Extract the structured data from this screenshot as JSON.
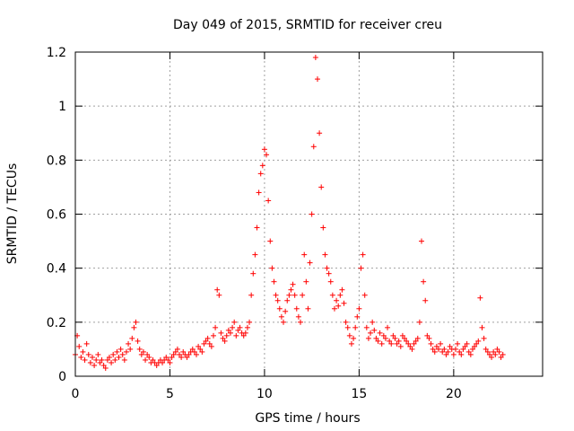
{
  "colors": {
    "series": "#ff0000",
    "grid": "#a0a0a0",
    "axis": "#000000"
  },
  "chart_data": {
    "type": "scatter",
    "title": "Day 049 of 2015, SRMTID for receiver creu",
    "xlabel": "GPS time / hours",
    "ylabel": "SRMTID / TECUs",
    "xlim": [
      0,
      24.7
    ],
    "ylim": [
      0,
      1.2
    ],
    "xticks": [
      0,
      5,
      10,
      15,
      20
    ],
    "xtick_labels": [
      "0",
      "5",
      "10",
      "15",
      "20"
    ],
    "yticks": [
      0,
      0.2,
      0.4,
      0.6,
      0.8,
      1.0,
      1.2
    ],
    "ytick_labels": [
      "0",
      "0.2",
      "0.4",
      "0.6",
      "0.8",
      "1",
      "1.2"
    ],
    "grid": true,
    "marker": "+",
    "series": [
      {
        "name": "SRMTID",
        "x_start": 0.0,
        "x_step": 0.1,
        "values": [
          0.08,
          0.15,
          0.11,
          0.07,
          0.09,
          0.06,
          0.12,
          0.08,
          0.05,
          0.07,
          0.04,
          0.06,
          0.08,
          0.05,
          0.06,
          0.04,
          0.03,
          0.06,
          0.07,
          0.05,
          0.08,
          0.06,
          0.09,
          0.07,
          0.1,
          0.08,
          0.06,
          0.09,
          0.12,
          0.1,
          0.14,
          0.18,
          0.2,
          0.13,
          0.1,
          0.08,
          0.09,
          0.06,
          0.08,
          0.07,
          0.05,
          0.06,
          0.05,
          0.04,
          0.05,
          0.06,
          0.05,
          0.06,
          0.07,
          0.06,
          0.05,
          0.07,
          0.08,
          0.09,
          0.1,
          0.08,
          0.07,
          0.09,
          0.08,
          0.07,
          0.08,
          0.09,
          0.1,
          0.09,
          0.08,
          0.11,
          0.1,
          0.09,
          0.12,
          0.13,
          0.14,
          0.12,
          0.11,
          0.15,
          0.18,
          0.32,
          0.3,
          0.16,
          0.14,
          0.13,
          0.15,
          0.17,
          0.16,
          0.18,
          0.2,
          0.15,
          0.17,
          0.18,
          0.16,
          0.15,
          0.16,
          0.18,
          0.2,
          0.3,
          0.38,
          0.45,
          0.55,
          0.68,
          0.75,
          0.78,
          0.84,
          0.82,
          0.65,
          0.5,
          0.4,
          0.35,
          0.3,
          0.28,
          0.25,
          0.22,
          0.2,
          0.24,
          0.28,
          0.3,
          0.32,
          0.34,
          0.3,
          0.25,
          0.22,
          0.2,
          0.3,
          0.45,
          0.35,
          0.25,
          0.42,
          0.6,
          0.85,
          1.18,
          1.1,
          0.9,
          0.7,
          0.55,
          0.45,
          0.4,
          0.38,
          0.35,
          0.3,
          0.25,
          0.28,
          0.26,
          0.3,
          0.32,
          0.27,
          0.2,
          0.18,
          0.15,
          0.12,
          0.14,
          0.18,
          0.22,
          0.25,
          0.4,
          0.45,
          0.3,
          0.18,
          0.14,
          0.16,
          0.2,
          0.17,
          0.14,
          0.13,
          0.16,
          0.12,
          0.15,
          0.14,
          0.18,
          0.13,
          0.12,
          0.15,
          0.14,
          0.12,
          0.13,
          0.11,
          0.15,
          0.14,
          0.13,
          0.12,
          0.11,
          0.1,
          0.12,
          0.13,
          0.14,
          0.2,
          0.5,
          0.35,
          0.28,
          0.15,
          0.14,
          0.12,
          0.1,
          0.09,
          0.11,
          0.1,
          0.12,
          0.09,
          0.1,
          0.08,
          0.09,
          0.11,
          0.1,
          0.08,
          0.1,
          0.12,
          0.09,
          0.08,
          0.1,
          0.11,
          0.12,
          0.09,
          0.08,
          0.1,
          0.11,
          0.12,
          0.13,
          0.29,
          0.18,
          0.14,
          0.1,
          0.09,
          0.08,
          0.07,
          0.09,
          0.08,
          0.1,
          0.09,
          0.07,
          0.08
        ]
      }
    ]
  }
}
